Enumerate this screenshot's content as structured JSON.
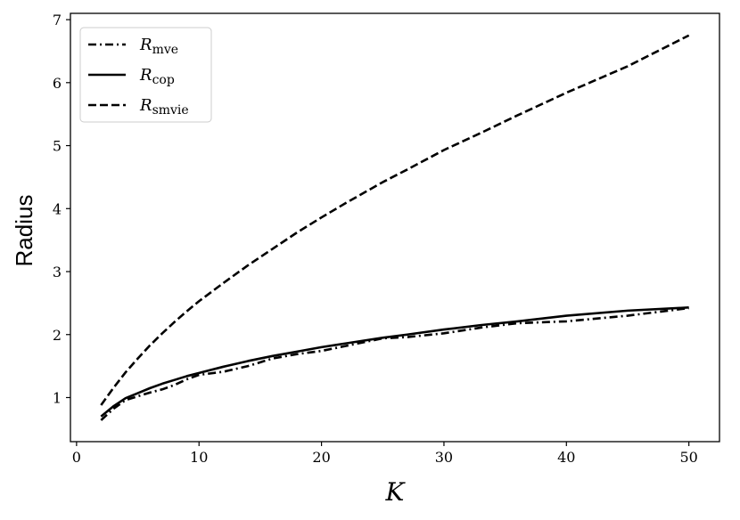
{
  "chart_data": {
    "type": "line",
    "xlabel": "K",
    "ylabel": "Radius",
    "xlim": [
      -0.5,
      52.5
    ],
    "ylim": [
      0.3,
      7.1
    ],
    "xticks": [
      0,
      10,
      20,
      30,
      40,
      50
    ],
    "yticks": [
      1,
      2,
      3,
      4,
      5,
      6,
      7
    ],
    "grid": false,
    "legend_position": "top-left",
    "series": [
      {
        "name_main": "R",
        "name_sub": "mve",
        "style": "dashdot",
        "color": "#000000",
        "x": [
          2,
          3,
          4,
          5,
          6,
          7,
          8,
          9,
          10,
          12,
          14,
          16,
          18,
          20,
          22,
          25,
          27,
          30,
          33,
          36,
          40,
          45,
          50
        ],
        "y": [
          0.64,
          0.82,
          0.96,
          1.02,
          1.08,
          1.13,
          1.2,
          1.29,
          1.36,
          1.41,
          1.5,
          1.62,
          1.69,
          1.74,
          1.82,
          1.94,
          1.96,
          2.02,
          2.11,
          2.18,
          2.21,
          2.3,
          2.42
        ]
      },
      {
        "name_main": "R",
        "name_sub": "cop",
        "style": "solid",
        "color": "#000000",
        "x": [
          2,
          3,
          4,
          5,
          6,
          7,
          8,
          9,
          10,
          12,
          14,
          16,
          18,
          20,
          22,
          25,
          27,
          30,
          33,
          36,
          40,
          45,
          50
        ],
        "y": [
          0.7,
          0.86,
          0.99,
          1.07,
          1.15,
          1.22,
          1.28,
          1.34,
          1.39,
          1.49,
          1.58,
          1.66,
          1.73,
          1.8,
          1.86,
          1.95,
          2.0,
          2.08,
          2.15,
          2.21,
          2.3,
          2.38,
          2.43
        ]
      },
      {
        "name_main": "R",
        "name_sub": "smvie",
        "style": "dashed",
        "color": "#000000",
        "x": [
          2,
          3,
          4,
          5,
          6,
          7,
          8,
          9,
          10,
          12,
          14,
          16,
          18,
          20,
          22,
          25,
          27,
          30,
          33,
          36,
          40,
          45,
          50
        ],
        "y": [
          0.88,
          1.15,
          1.4,
          1.62,
          1.83,
          2.02,
          2.2,
          2.37,
          2.53,
          2.82,
          3.1,
          3.36,
          3.62,
          3.86,
          4.09,
          4.42,
          4.62,
          4.93,
          5.2,
          5.48,
          5.84,
          6.26,
          6.75
        ]
      }
    ]
  }
}
